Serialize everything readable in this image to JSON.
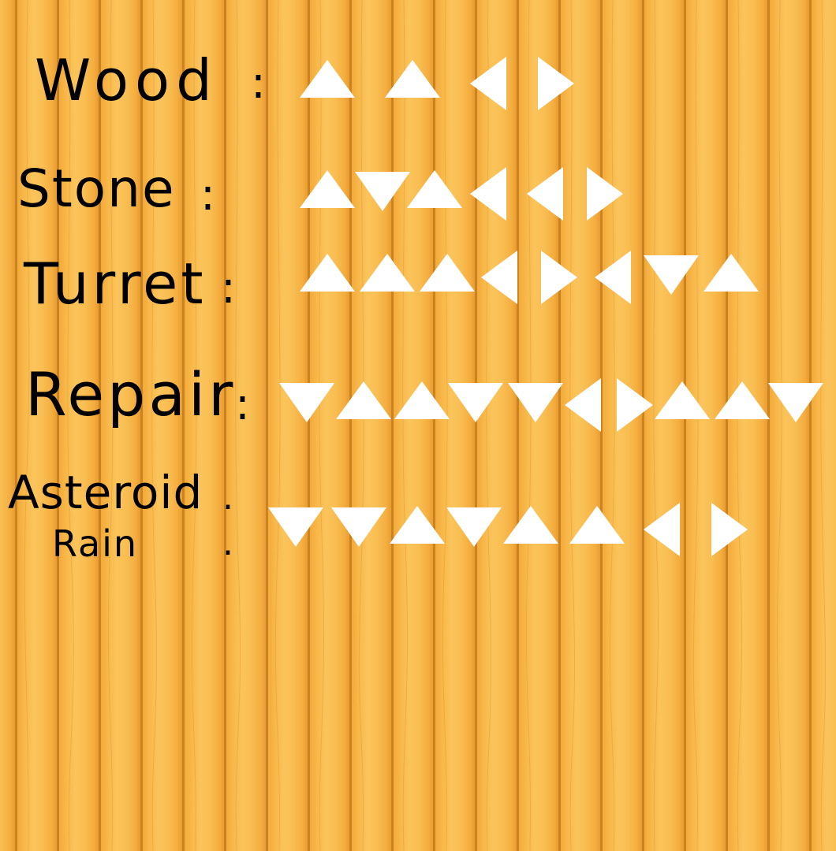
{
  "recipes": [
    {
      "id": "wood",
      "label": "Wood",
      "sequence": [
        "up",
        "up",
        "left",
        "right"
      ]
    },
    {
      "id": "stone",
      "label": "Stone",
      "sequence": [
        "up",
        "down",
        "up",
        "left",
        "left",
        "right"
      ]
    },
    {
      "id": "turret",
      "label": "Turret",
      "sequence": [
        "up",
        "up",
        "up",
        "left",
        "right",
        "left",
        "down",
        "up"
      ]
    },
    {
      "id": "repair",
      "label": "Repair",
      "sequence": [
        "down",
        "up",
        "up",
        "down",
        "down",
        "left",
        "right",
        "up",
        "up",
        "down"
      ]
    },
    {
      "id": "asteroid_rain",
      "label_line1": "Asteroid",
      "label_line2": "Rain",
      "sequence": [
        "down",
        "down",
        "up",
        "down",
        "up",
        "up",
        "left",
        "right"
      ]
    }
  ],
  "colors": {
    "arrow": "#ffffff",
    "text": "#000000",
    "wood_light": "#fbc45a",
    "wood_dark": "#c98420"
  }
}
